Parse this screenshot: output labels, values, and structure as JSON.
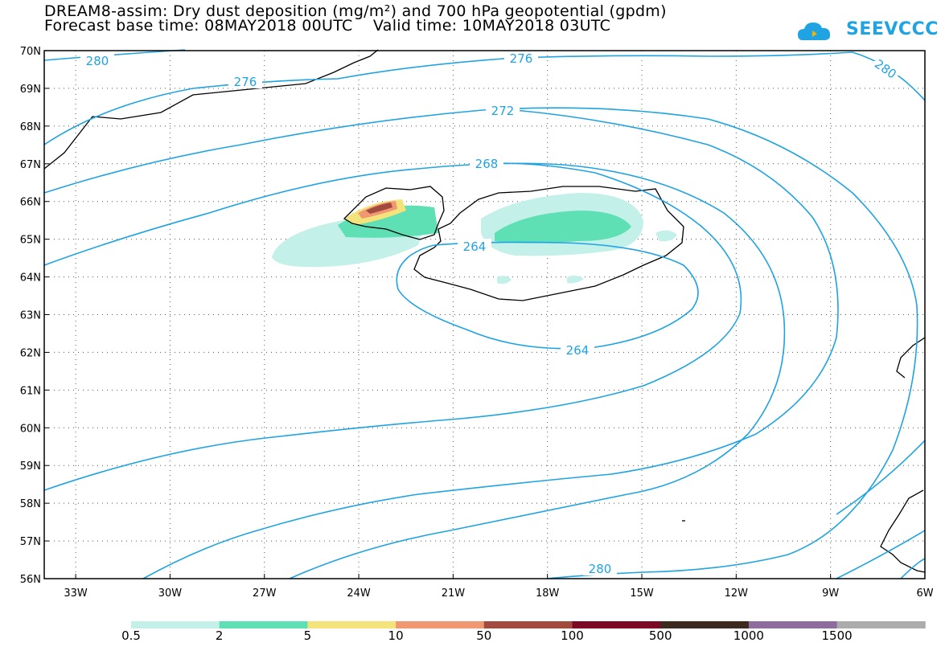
{
  "header": {
    "title_line1": "DREAM8-assim: Dry dust deposition (mg/m²) and 700 hPa geopotential (gpdm)",
    "title_line2": "Forecast base time: 08MAY2018 00UTC    Valid time: 10MAY2018 03UTC",
    "logo_text": "SEEVCCC"
  },
  "map": {
    "lat_ticks": [
      {
        "label": "70N",
        "value": 70
      },
      {
        "label": "69N",
        "value": 69
      },
      {
        "label": "68N",
        "value": 68
      },
      {
        "label": "67N",
        "value": 67
      },
      {
        "label": "66N",
        "value": 66
      },
      {
        "label": "65N",
        "value": 65
      },
      {
        "label": "64N",
        "value": 64
      },
      {
        "label": "63N",
        "value": 63
      },
      {
        "label": "62N",
        "value": 62
      },
      {
        "label": "61N",
        "value": 61
      },
      {
        "label": "60N",
        "value": 60
      },
      {
        "label": "59N",
        "value": 59
      },
      {
        "label": "58N",
        "value": 58
      },
      {
        "label": "57N",
        "value": 57
      },
      {
        "label": "56N",
        "value": 56
      }
    ],
    "lon_ticks": [
      {
        "label": "33W",
        "value": -33
      },
      {
        "label": "30W",
        "value": -30
      },
      {
        "label": "27W",
        "value": -27
      },
      {
        "label": "24W",
        "value": -24
      },
      {
        "label": "21W",
        "value": -21
      },
      {
        "label": "18W",
        "value": -18
      },
      {
        "label": "15W",
        "value": -15
      },
      {
        "label": "12W",
        "value": -12
      },
      {
        "label": "9W",
        "value": -9
      },
      {
        "label": "6W",
        "value": -6
      }
    ],
    "contour_labels": [
      "280",
      "276",
      "276",
      "272",
      "268",
      "264",
      "264",
      "280",
      "280"
    ],
    "contour_color": "#1fa3e3",
    "coast_color": "#000000"
  },
  "colorbar": {
    "colors": [
      "#c4f0ea",
      "#5ee0b4",
      "#f4e27a",
      "#ef9872",
      "#a24a3e",
      "#7c0a26",
      "#3c2a1e",
      "#8e6c9e",
      "#acacac"
    ],
    "labels": [
      "0.5",
      "2",
      "5",
      "10",
      "50",
      "100",
      "500",
      "1000",
      "1500"
    ]
  }
}
